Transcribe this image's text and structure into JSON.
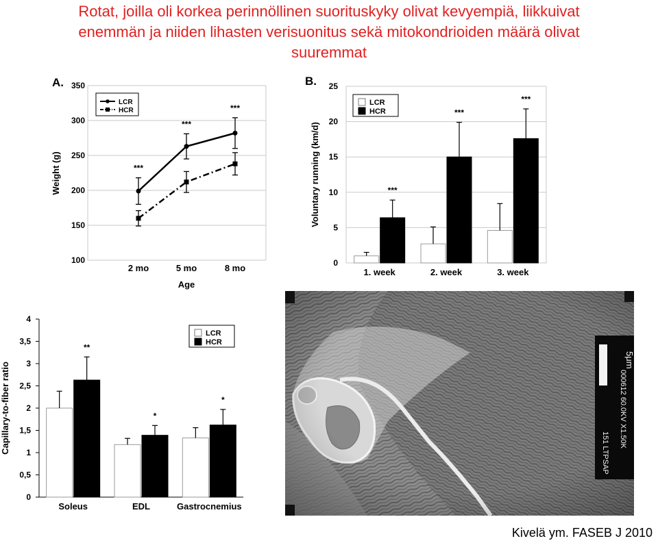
{
  "slide": {
    "title_lines": [
      "Rotat, joilla oli korkea perinnöllinen suorituskyky olivat kevyempiä, liikkuivat",
      "enemmän ja niiden lihasten verisuonitus sekä mitokondrioiden määrä olivat",
      "suuremmat"
    ],
    "citation": "Kivelä ym. FASEB J 2010",
    "title_color": "#e02020"
  },
  "chart_data": [
    {
      "panel_label": "A.",
      "type": "line",
      "categories": [
        "2 mo",
        "5 mo",
        "8 mo"
      ],
      "series": [
        {
          "name": "LCR",
          "values": [
            199,
            263,
            282
          ],
          "errors": [
            19,
            18,
            22
          ],
          "style": "solid",
          "marker": "circle"
        },
        {
          "name": "HCR",
          "values": [
            160,
            212,
            238
          ],
          "errors": [
            11,
            15,
            16
          ],
          "style": "dash-dot",
          "marker": "square"
        }
      ],
      "significance": [
        "***",
        "***",
        "***"
      ],
      "xlabel": "Age",
      "ylabel": "Weight (g)",
      "ylim": [
        100,
        350
      ],
      "yticks": [
        100,
        150,
        200,
        250,
        300,
        350
      ],
      "grid": true,
      "legend": "top-left"
    },
    {
      "panel_label": "B.",
      "type": "bar",
      "categories": [
        "1. week",
        "2. week",
        "3. week"
      ],
      "series": [
        {
          "name": "LCR",
          "values": [
            1.0,
            2.7,
            4.6
          ],
          "errors": [
            0.5,
            2.4,
            3.8
          ],
          "fill": "#ffffff"
        },
        {
          "name": "HCR",
          "values": [
            6.4,
            15.0,
            17.6
          ],
          "errors": [
            2.5,
            4.9,
            4.2
          ],
          "fill": "#000000"
        }
      ],
      "significance": [
        "***",
        "***",
        "***"
      ],
      "xlabel": "",
      "ylabel": "Voluntary running (km/d)",
      "ylim": [
        0,
        25
      ],
      "yticks": [
        0,
        5,
        10,
        15,
        20,
        25
      ],
      "grid": true,
      "legend": "top-left"
    },
    {
      "panel_label": "",
      "type": "bar",
      "categories": [
        "Soleus",
        "EDL",
        "Gastrocnemius"
      ],
      "series": [
        {
          "name": "LCR",
          "values": [
            2.0,
            1.18,
            1.33
          ],
          "errors": [
            0.38,
            0.14,
            0.23
          ],
          "fill": "#ffffff"
        },
        {
          "name": "HCR",
          "values": [
            2.63,
            1.39,
            1.62
          ],
          "errors": [
            0.52,
            0.22,
            0.35
          ],
          "fill": "#000000"
        }
      ],
      "significance": [
        "**",
        "*",
        "*"
      ],
      "xlabel": "",
      "ylabel": "Capillary-to-fiber ratio",
      "ylim": [
        0,
        4
      ],
      "yticks": [
        "0",
        "0,5",
        "1",
        "1,5",
        "2",
        "2,5",
        "3",
        "3,5",
        "4"
      ],
      "grid": false,
      "legend": "top-right"
    }
  ],
  "micrograph": {
    "scale_text": "5μm",
    "side_code_1": "151 LTPSAP",
    "side_code_2": "000612 60.0KV X1.50K"
  }
}
